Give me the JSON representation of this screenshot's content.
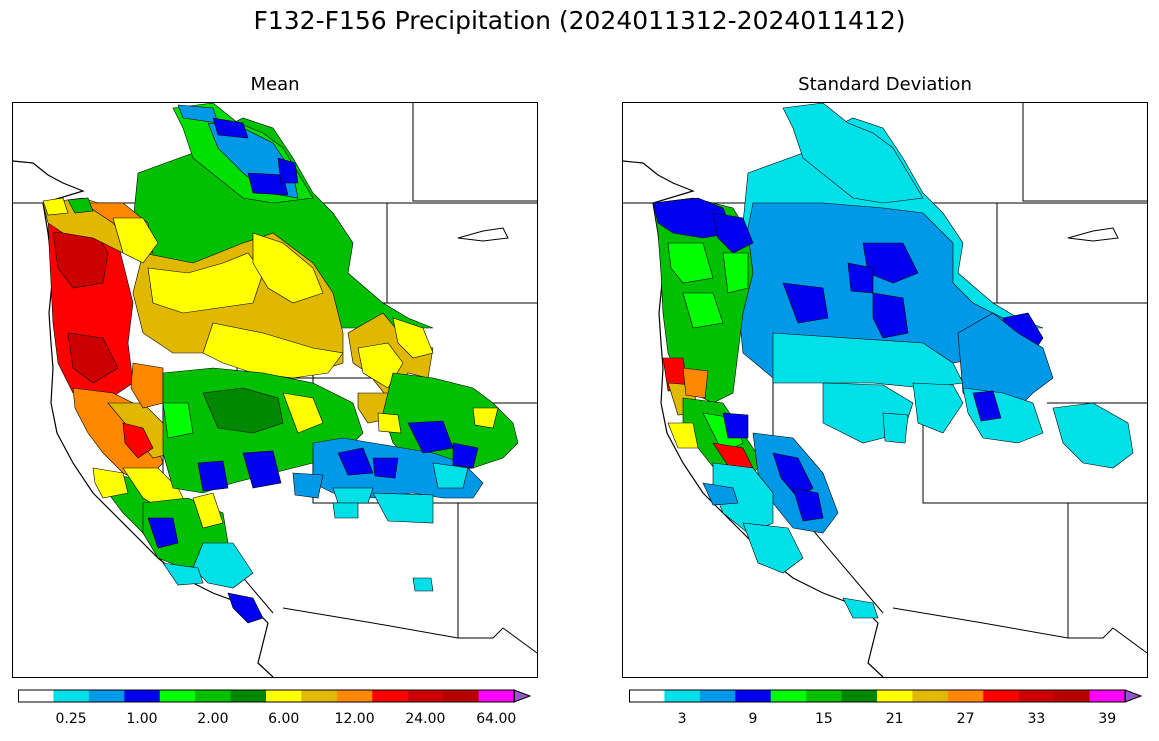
{
  "figure": {
    "title": "F132-F156 Precipitation (2024011312-2024011412)"
  },
  "chart_data": [
    {
      "type": "heatmap",
      "title": "Mean",
      "legend_placement": "bottom",
      "colorbar": {
        "colors": [
          "#ffffff",
          "#00e0e8",
          "#0099e8",
          "#0000f0",
          "#00ff00",
          "#00c000",
          "#008800",
          "#ffff00",
          "#e0b800",
          "#ff8800",
          "#ff0000",
          "#cc0000",
          "#b80000",
          "#ff00ff",
          "#9955cc"
        ],
        "tick_labels": [
          "0.25",
          "1.00",
          "2.00",
          "6.00",
          "12.00",
          "24.00",
          "64.00"
        ],
        "tick_boundaries": [
          1,
          3,
          5,
          7,
          9,
          11,
          13
        ],
        "extend": "max"
      }
    },
    {
      "type": "heatmap",
      "title": "Standard Deviation",
      "legend_placement": "bottom",
      "colorbar": {
        "colors": [
          "#ffffff",
          "#00e0e8",
          "#0099e8",
          "#0000f0",
          "#00ff00",
          "#00c000",
          "#008800",
          "#ffff00",
          "#e0b800",
          "#ff8800",
          "#ff0000",
          "#cc0000",
          "#b80000",
          "#ff00ff",
          "#9955cc"
        ],
        "tick_labels": [
          "3",
          "9",
          "15",
          "21",
          "27",
          "33",
          "39"
        ],
        "tick_boundaries": [
          1,
          3,
          5,
          7,
          9,
          11,
          13
        ],
        "extend": "max"
      }
    }
  ]
}
